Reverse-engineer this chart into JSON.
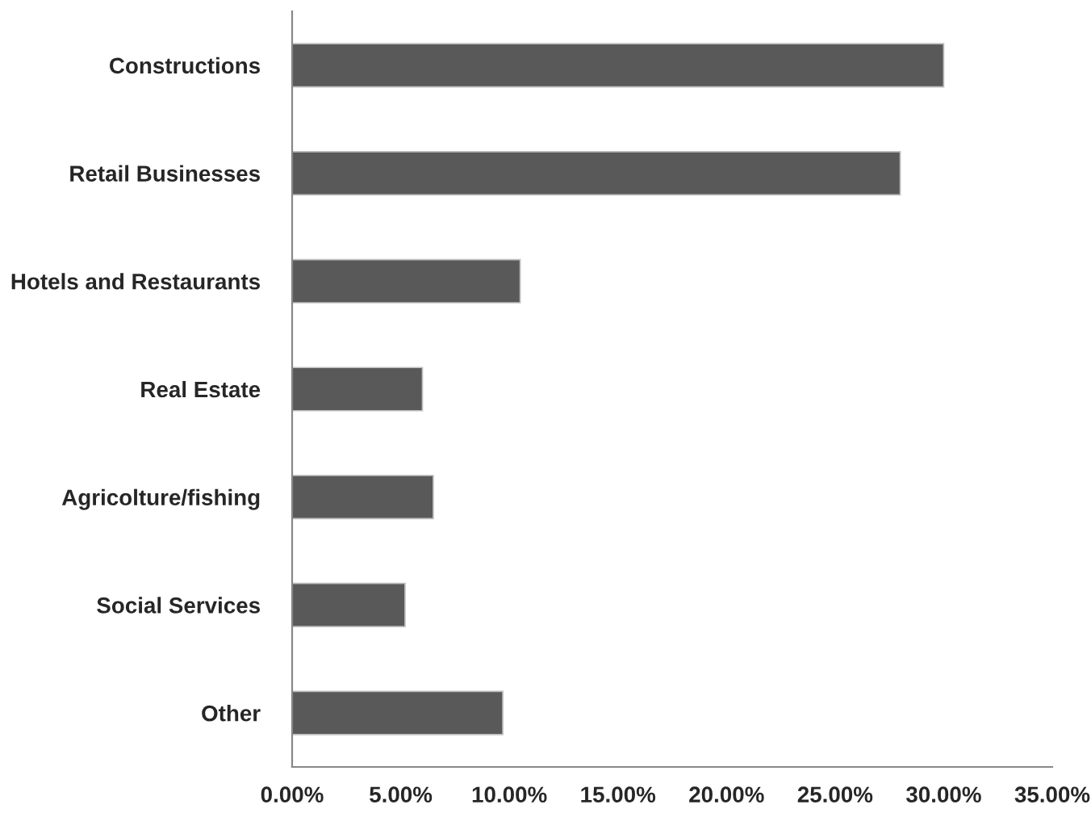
{
  "chart_data": {
    "type": "bar",
    "orientation": "horizontal",
    "categories": [
      "Constructions",
      "Retail Businesses",
      "Hotels and Restaurants",
      "Real Estate",
      "Agricolture/fishing",
      "Social Services",
      "Other"
    ],
    "series": [
      {
        "color": "#595959",
        "values": [
          30.0,
          28.0,
          10.5,
          6.0,
          6.5,
          5.2,
          9.7
        ]
      }
    ],
    "xlim": [
      0,
      35
    ],
    "xticks": [
      {
        "value": 0,
        "label": "0.00%"
      },
      {
        "value": 5,
        "label": "5.00%"
      },
      {
        "value": 10,
        "label": "10.00%"
      },
      {
        "value": 15,
        "label": "15.00%"
      },
      {
        "value": 20,
        "label": "20.00%"
      },
      {
        "value": 25,
        "label": "25.00%"
      },
      {
        "value": 30,
        "label": "30.00%"
      },
      {
        "value": 35,
        "label": "35.00%"
      }
    ],
    "grid": false,
    "legend": false
  }
}
